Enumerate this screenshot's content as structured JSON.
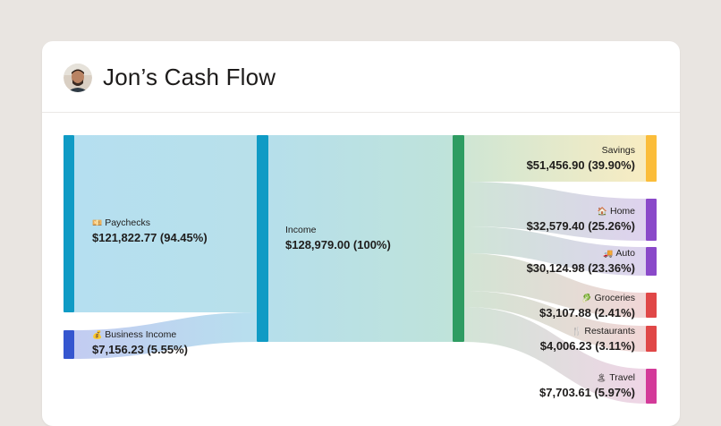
{
  "header": {
    "title": "Jon’s Cash Flow"
  },
  "nodes": {
    "paychecks": {
      "emoji": "💴",
      "label": "Paychecks",
      "value": "$121,822.77 (94.45%)"
    },
    "business": {
      "emoji": "💰",
      "label": "Business Income",
      "value": "$7,156.23 (5.55%)"
    },
    "income": {
      "label": "Income",
      "value": "$128,979.00 (100%)"
    },
    "savings": {
      "label": "Savings",
      "value": "$51,456.90 (39.90%)"
    },
    "home": {
      "emoji": "🏠",
      "label": "Home",
      "value": "$32,579.40 (25.26%)"
    },
    "auto": {
      "emoji": "🚚",
      "label": "Auto",
      "value": "$30,124.98 (23.36%)"
    },
    "groceries": {
      "emoji": "🥬",
      "label": "Groceries",
      "value": "$3,107.88 (2.41%)"
    },
    "restaurants": {
      "emoji": "🍴",
      "label": "Restaurants",
      "value": "$4,006.23 (3.11%)"
    },
    "travel": {
      "emoji": "🏝",
      "label": "Travel",
      "value": "$7,703.61 (5.97%)"
    }
  },
  "colors": {
    "paychecks_bar": "#0f9bc5",
    "business_bar": "#3556cf",
    "income_bar": "#0f9bc5",
    "spend_bar": "#2e9c62",
    "savings_bar": "#fbbd3a",
    "home_bar": "#8a49c9",
    "auto_bar": "#8a49c9",
    "groceries_bar": "#e04747",
    "restaurants_bar": "#e04747",
    "travel_bar": "#d33a99"
  }
}
